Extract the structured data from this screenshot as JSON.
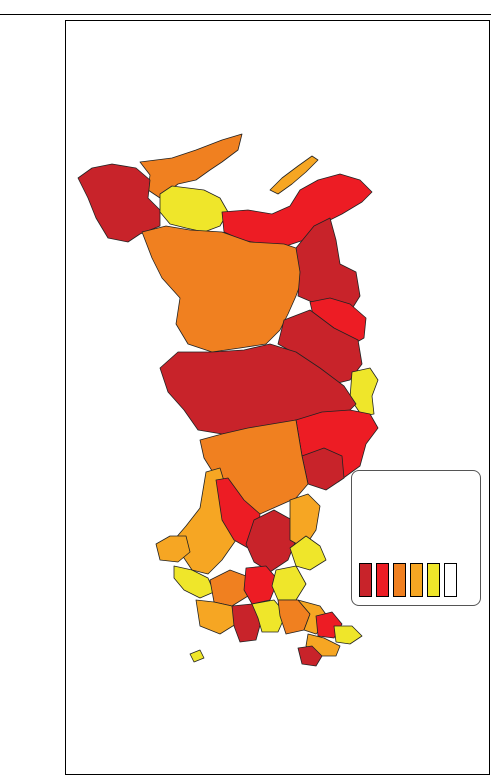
{
  "legend": {
    "title": "",
    "classes": [
      {
        "color": "#C8232A",
        "label": ""
      },
      {
        "color": "#ED1C24",
        "label": ""
      },
      {
        "color": "#F08020",
        "label": ""
      },
      {
        "color": "#F6A623",
        "label": ""
      },
      {
        "color": "#EFE62A",
        "label": ""
      },
      {
        "color": "#FFFFFF",
        "label": ""
      }
    ]
  },
  "colors": {
    "dark_red": "#C8232A",
    "red": "#ED1C24",
    "orange": "#F08020",
    "light_orange": "#F6A623",
    "yellow": "#EFE62A",
    "outline": "#222222"
  }
}
